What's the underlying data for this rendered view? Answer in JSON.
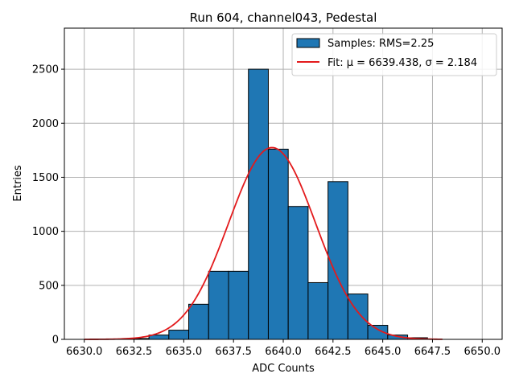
{
  "chart_data": {
    "type": "bar",
    "title": "Run 604, channel043, Pedestal",
    "xlabel": "ADC Counts",
    "ylabel": "Entries",
    "xlim": [
      6629.0,
      6651.0
    ],
    "ylim": [
      0,
      2880
    ],
    "xticks": [
      6630.0,
      6632.5,
      6635.0,
      6637.5,
      6640.0,
      6642.5,
      6645.0,
      6647.5,
      6650.0
    ],
    "xtick_labels": [
      "6630.0",
      "6632.5",
      "6635.0",
      "6637.5",
      "6640.0",
      "6642.5",
      "6645.0",
      "6647.5",
      "6650.0"
    ],
    "yticks": [
      0,
      500,
      1000,
      1500,
      2000,
      2500
    ],
    "ytick_labels": [
      "0",
      "500",
      "1000",
      "1500",
      "2000",
      "2500"
    ],
    "grid": true,
    "legend_position": "top-right",
    "histogram": {
      "name": "Samples: RMS=2.25",
      "color": "#1f77b4",
      "edgecolor": "#000000",
      "bin_edges": [
        6632.0,
        6633.25,
        6634.25,
        6635.25,
        6636.25,
        6637.25,
        6638.25,
        6639.25,
        6640.25,
        6641.25,
        6642.25,
        6643.25,
        6644.25,
        6645.25,
        6646.25,
        6647.25
      ],
      "counts": [
        8,
        40,
        85,
        325,
        630,
        630,
        2500,
        1760,
        1230,
        525,
        1460,
        420,
        130,
        40,
        15
      ]
    },
    "fit": {
      "name": "Fit: μ = 6639.438, σ = 2.184",
      "color": "#e31a1c",
      "mu": 6639.438,
      "sigma": 2.184,
      "amplitude": 1775,
      "x_range": [
        6630.0,
        6648.0
      ]
    }
  }
}
